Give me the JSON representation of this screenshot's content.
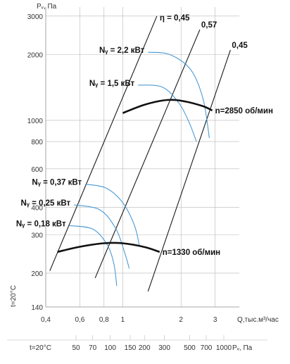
{
  "chart_data": {
    "type": "line",
    "title": "",
    "ylabel": "Pᵥ, Па",
    "xlabel": "Q,тыс.м³/час",
    "yaxis_side_label": "t=20°C",
    "scale": "log-log",
    "x_range": [
      0.4,
      4.0
    ],
    "y_range": [
      140,
      3300
    ],
    "x_ticks": [
      0.4,
      0.6,
      0.8,
      1,
      2,
      3
    ],
    "x_tick_labels": [
      "0,4",
      "0,6",
      "0,8",
      "1",
      "2",
      "3"
    ],
    "y_ticks": [
      140,
      200,
      300,
      400,
      600,
      800,
      1000,
      2000,
      3000
    ],
    "y_tick_labels": [
      "140",
      "200",
      "300",
      "400",
      "600",
      "800",
      "1000",
      "2000",
      "3000"
    ],
    "bottom_axis": {
      "label_left": "t=20°C",
      "label_right": "Pᵥ, Па",
      "ticks": [
        50,
        70,
        100,
        150,
        200,
        300,
        500,
        700,
        1000
      ],
      "tick_labels": [
        "50",
        "70",
        "100",
        "150",
        "200",
        "300",
        "500",
        "700",
        "1000"
      ]
    },
    "efficiency_lines": [
      {
        "label": "η = 0,45",
        "points": [
          [
            0.42,
            205
          ],
          [
            1.5,
            3000
          ]
        ]
      },
      {
        "label": "0,57",
        "points": [
          [
            0.72,
            190
          ],
          [
            2.5,
            2600
          ]
        ]
      },
      {
        "label": "0,45",
        "points": [
          [
            1.35,
            165
          ],
          [
            3.6,
            2100
          ]
        ]
      }
    ],
    "speed_curves": [
      {
        "label": "n=2850 об/мин",
        "points": [
          [
            1.0,
            1080
          ],
          [
            1.3,
            1180
          ],
          [
            1.7,
            1240
          ],
          [
            2.1,
            1220
          ],
          [
            2.6,
            1160
          ],
          [
            2.9,
            1110
          ]
        ]
      },
      {
        "label": "n=1330 об/мин",
        "points": [
          [
            0.46,
            250
          ],
          [
            0.6,
            264
          ],
          [
            0.8,
            274
          ],
          [
            1.0,
            274
          ],
          [
            1.3,
            263
          ],
          [
            1.55,
            250
          ]
        ]
      }
    ],
    "power_curves": [
      {
        "label": "Nᵧ = 2,2 кВт",
        "points": [
          [
            1.35,
            2050
          ],
          [
            1.75,
            2000
          ],
          [
            2.25,
            1700
          ],
          [
            2.6,
            1250
          ],
          [
            2.8,
            830
          ]
        ]
      },
      {
        "label": "Nᵧ = 1,5 кВт",
        "points": [
          [
            1.2,
            1450
          ],
          [
            1.6,
            1420
          ],
          [
            1.95,
            1200
          ],
          [
            2.2,
            980
          ],
          [
            2.4,
            800
          ]
        ]
      },
      {
        "label": "Nᵧ = 0,37 кВт",
        "points": [
          [
            0.64,
            510
          ],
          [
            0.82,
            490
          ],
          [
            1.0,
            420
          ],
          [
            1.15,
            330
          ],
          [
            1.22,
            265
          ]
        ]
      },
      {
        "label": "Nᵧ = 0,25 кВт",
        "points": [
          [
            0.56,
            410
          ],
          [
            0.76,
            390
          ],
          [
            0.92,
            320
          ],
          [
            1.02,
            250
          ],
          [
            1.08,
            210
          ]
        ]
      },
      {
        "label": "Nᵧ = 0,18 кВт",
        "points": [
          [
            0.53,
            330
          ],
          [
            0.7,
            318
          ],
          [
            0.83,
            270
          ],
          [
            0.9,
            220
          ],
          [
            0.93,
            175
          ]
        ]
      }
    ]
  }
}
